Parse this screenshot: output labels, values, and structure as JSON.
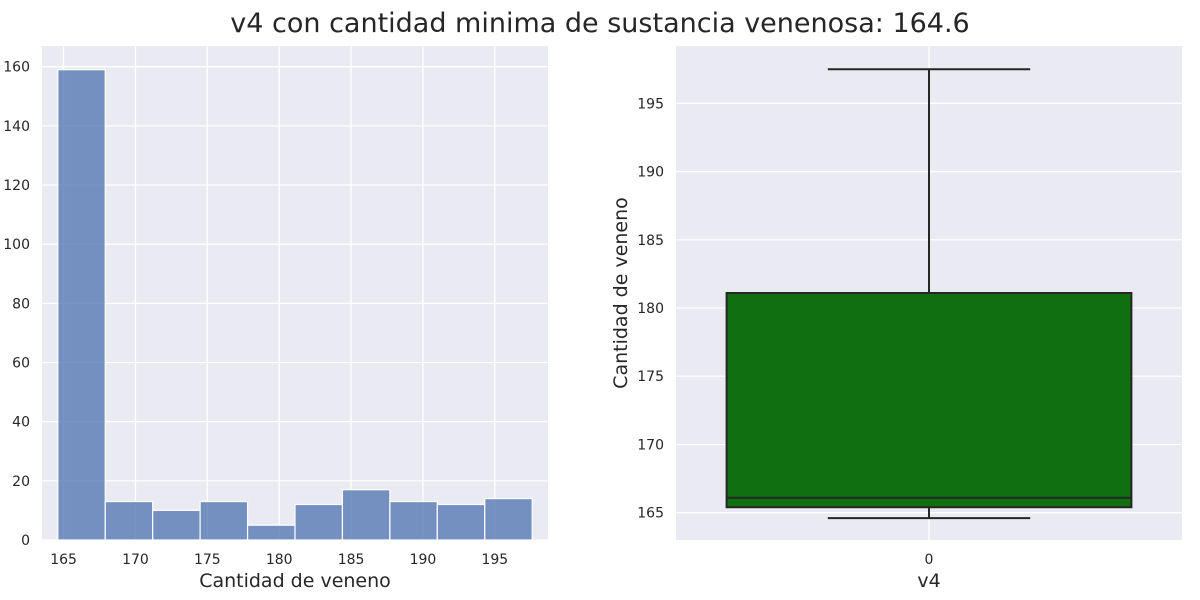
{
  "figure": {
    "title": "v4 con cantidad minima de sustancia venenosa: 164.6"
  },
  "chart_data": [
    {
      "type": "histogram",
      "title": "",
      "xlabel": "Cantidad de veneno",
      "ylabel": "",
      "bins": [
        {
          "start": 164.6,
          "end": 167.9,
          "count": 159
        },
        {
          "start": 167.9,
          "end": 171.2,
          "count": 13
        },
        {
          "start": 171.2,
          "end": 174.5,
          "count": 10
        },
        {
          "start": 174.5,
          "end": 177.8,
          "count": 13
        },
        {
          "start": 177.8,
          "end": 181.1,
          "count": 5
        },
        {
          "start": 181.1,
          "end": 184.4,
          "count": 12
        },
        {
          "start": 184.4,
          "end": 187.7,
          "count": 17
        },
        {
          "start": 187.7,
          "end": 191.0,
          "count": 13
        },
        {
          "start": 191.0,
          "end": 194.3,
          "count": 12
        },
        {
          "start": 194.3,
          "end": 197.6,
          "count": 14
        }
      ],
      "xlim": [
        163.5,
        198.7
      ],
      "ylim": [
        0,
        167
      ],
      "xticks": [
        165,
        170,
        175,
        180,
        185,
        190,
        195
      ],
      "yticks": [
        0,
        20,
        40,
        60,
        80,
        100,
        120,
        140,
        160
      ],
      "bar_color": "#4c72b0",
      "grid": true
    },
    {
      "type": "box",
      "title": "",
      "xlabel": "v4",
      "ylabel": "Cantidad de veneno",
      "categories": [
        "0"
      ],
      "stats": {
        "whisker_low": 164.6,
        "q1": 165.4,
        "median": 166.1,
        "q3": 181.1,
        "whisker_high": 197.5
      },
      "ylim": [
        163.0,
        199.2
      ],
      "yticks": [
        165,
        170,
        175,
        180,
        185,
        190,
        195
      ],
      "box_color": "#107010",
      "grid": true
    }
  ]
}
